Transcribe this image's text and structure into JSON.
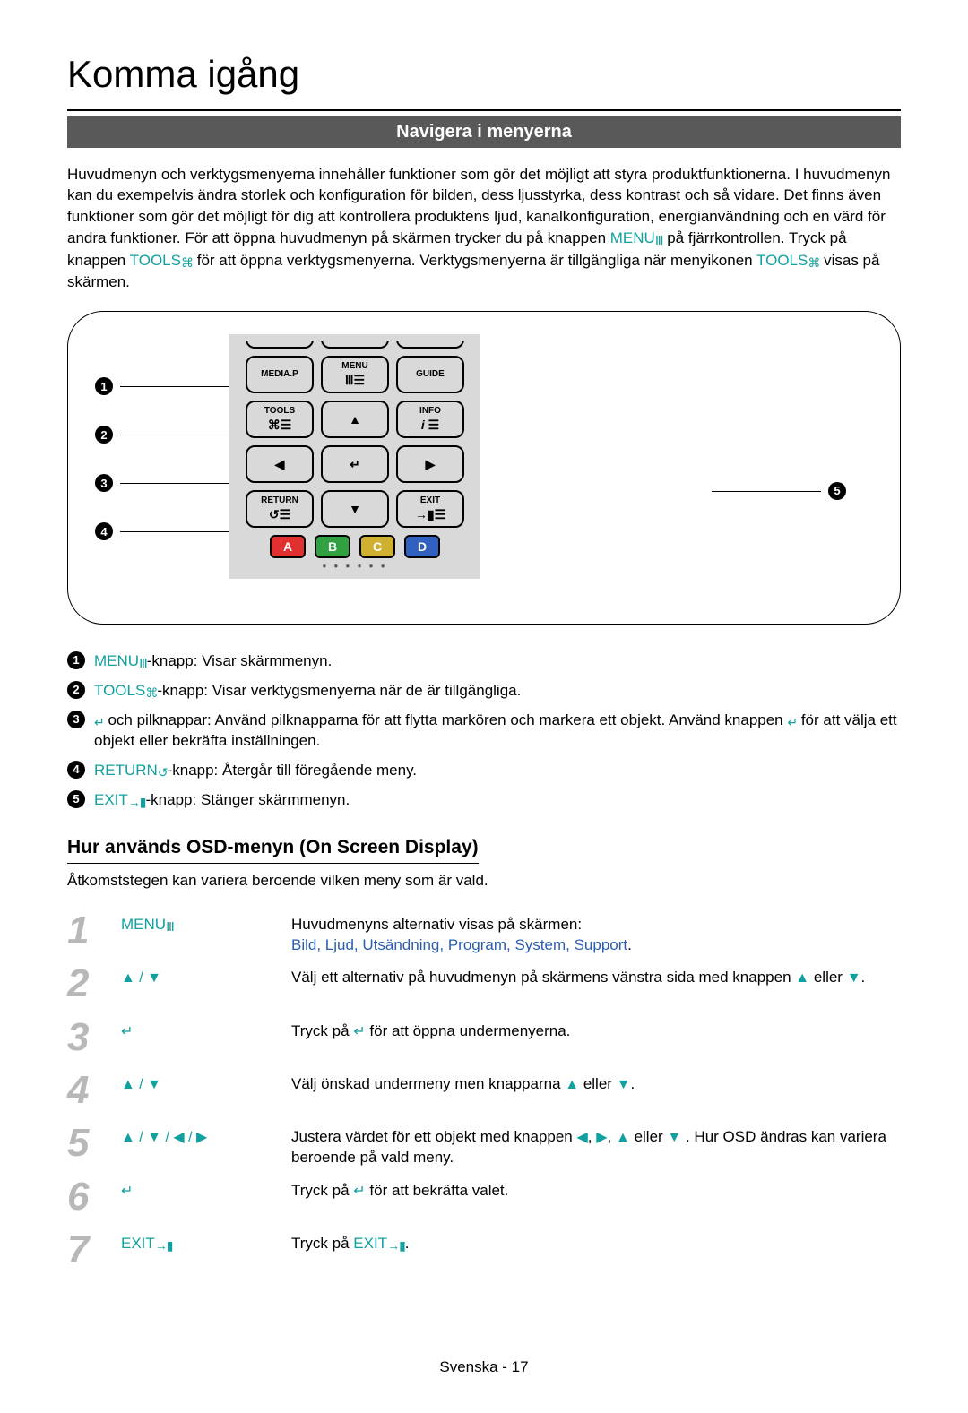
{
  "page_title": "Komma igång",
  "banner": "Navigera i menyerna",
  "intro": {
    "pre1": "Huvudmenyn och verktygsmenyerna innehåller funktioner som gör det möjligt att styra produktfunktionerna. I huvudmenyn kan du exempelvis ändra storlek och konfiguration för bilden, dess ljusstyrka, dess kontrast och så vidare. Det finns även funktioner som gör det möjligt för dig att kontrollera produktens ljud, kanalkonfiguration, energianvändning och en värd för andra funktioner. För att öppna huvudmenyn på skärmen trycker du på knappen ",
    "menu": "MENU",
    "mid1": " på fjärrkontrollen. Tryck på knappen ",
    "tools": "TOOLS",
    "mid2": " för att öppna verktygsmenyerna. Verktygsmenyerna är tillgängliga när menyikonen ",
    "tools2": "TOOLS",
    "end": " visas på skärmen."
  },
  "remote": {
    "buttons": {
      "mediap": "MEDIA.P",
      "menu": "MENU",
      "guide": "GUIDE",
      "tools": "TOOLS",
      "info": "INFO",
      "return": "RETURN",
      "exit": "EXIT"
    },
    "colors": {
      "a": {
        "label": "A",
        "bg": "#e03030"
      },
      "b": {
        "label": "B",
        "bg": "#30a040"
      },
      "c": {
        "label": "C",
        "bg": "#d0b030"
      },
      "d": {
        "label": "D",
        "bg": "#3060c0"
      }
    }
  },
  "legend": [
    {
      "n": "1",
      "key": "MENU",
      "key_color": "#10a0a0",
      "icon": "m",
      "text": "-knapp: Visar skärmmenyn."
    },
    {
      "n": "2",
      "key": "TOOLS",
      "key_color": "#10a0a0",
      "icon": "t",
      "text": "-knapp: Visar verktygsmenyerna när de är tillgängliga."
    },
    {
      "n": "3",
      "key": "",
      "key_color": "",
      "icon": "e",
      "text_pre": " och pilknappar: Använd pilknapparna för att flytta markören och markera ett objekt. Använd knappen ",
      "text_post": " för att välja ett objekt eller bekräfta inställningen."
    },
    {
      "n": "4",
      "key": "RETURN",
      "key_color": "#10a0a0",
      "icon": "r",
      "text": "-knapp: Återgår till föregående meny."
    },
    {
      "n": "5",
      "key": "EXIT",
      "key_color": "#10a0a0",
      "icon": "x",
      "text": "-knapp: Stänger skärmmenyn."
    }
  ],
  "osd": {
    "heading": "Hur används OSD-menyn (On Screen Display)",
    "intro": "Åtkomststegen kan variera beroende vilken meny som är vald.",
    "steps": [
      {
        "n": "1",
        "action_key": "MENU",
        "action_icon": "m",
        "desc_pre": "Huvudmenyns alternativ visas på skärmen:",
        "menu_items": "Bild, Ljud, Utsändning, Program, System, Support",
        "menu_tail": "."
      },
      {
        "n": "2",
        "action_arrows": "▲ / ▼",
        "desc": "Välj ett alternativ på huvudmenyn på skärmens vänstra sida med knappen ▲ eller ▼."
      },
      {
        "n": "3",
        "action_enter": true,
        "desc": "Tryck på ↵ för att öppna undermenyerna."
      },
      {
        "n": "4",
        "action_arrows": "▲ / ▼",
        "desc": "Välj önskad undermeny men knapparna ▲ eller ▼."
      },
      {
        "n": "5",
        "action_arrows": "▲ / ▼ / ◀ / ▶",
        "desc": "Justera värdet för ett objekt med knappen ◀, ▶, ▲ eller ▼ . Hur OSD ändras kan variera beroende på vald meny."
      },
      {
        "n": "6",
        "action_enter": true,
        "desc": "Tryck på ↵ för att bekräfta valet."
      },
      {
        "n": "7",
        "action_key": "EXIT",
        "action_icon": "x",
        "desc_pre": "Tryck på ",
        "desc_key": "EXIT",
        "desc_post": "."
      }
    ]
  },
  "footer": "Svenska - 17"
}
